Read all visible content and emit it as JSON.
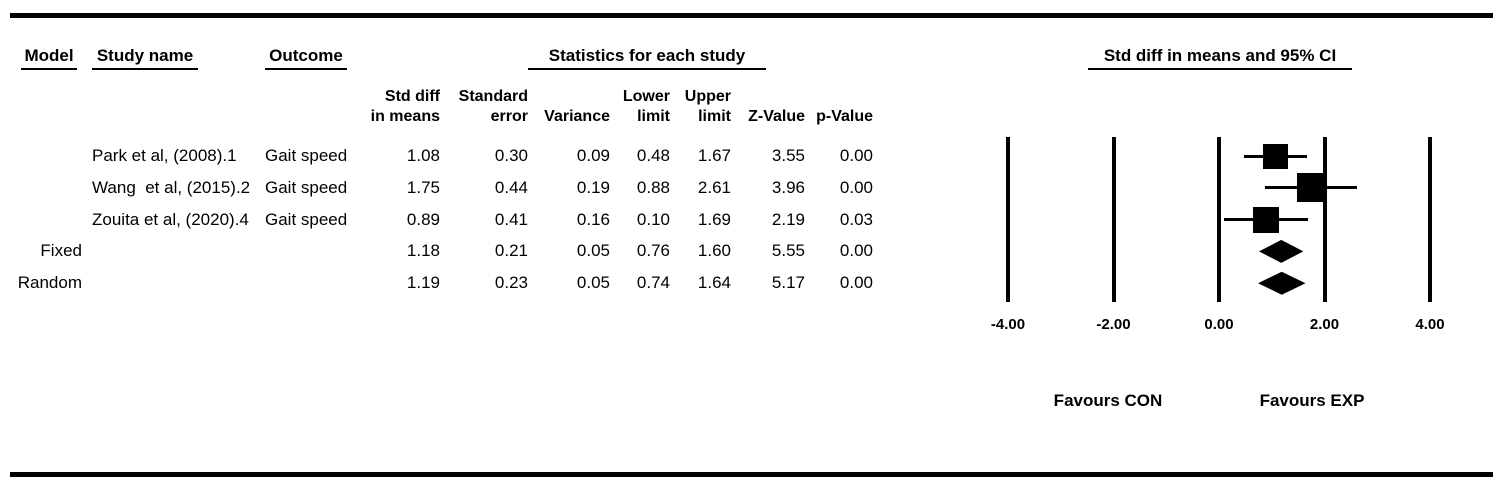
{
  "headers": {
    "model": "Model",
    "study_name": "Study name",
    "outcome": "Outcome",
    "stats_group": "Statistics for each study",
    "plot_group": "Std diff in means and 95% CI"
  },
  "columns": {
    "std_diff": "Std diff\nin means",
    "std_err": "Standard\nerror",
    "variance": "Variance",
    "lower": "Lower\nlimit",
    "upper": "Upper\nlimit",
    "z": "Z-Value",
    "p": "p-Value"
  },
  "table": {
    "rows": [
      {
        "model": "",
        "study": "Park et al, (2008).1",
        "outcome": "Gait speed",
        "std_diff": "1.08",
        "std_err": "0.30",
        "variance": "0.09",
        "lower": "0.48",
        "upper": "1.67",
        "z": "3.55",
        "p": "0.00"
      },
      {
        "model": "",
        "study": "Wang  et al, (2015).2",
        "outcome": "Gait speed",
        "std_diff": "1.75",
        "std_err": "0.44",
        "variance": "0.19",
        "lower": "0.88",
        "upper": "2.61",
        "z": "3.96",
        "p": "0.00"
      },
      {
        "model": "",
        "study": "Zouita et al, (2020).4",
        "outcome": "Gait speed",
        "std_diff": "0.89",
        "std_err": "0.41",
        "variance": "0.16",
        "lower": "0.10",
        "upper": "1.69",
        "z": "2.19",
        "p": "0.03"
      },
      {
        "model": "Fixed",
        "study": "",
        "outcome": "",
        "std_diff": "1.18",
        "std_err": "0.21",
        "variance": "0.05",
        "lower": "0.76",
        "upper": "1.60",
        "z": "5.55",
        "p": "0.00"
      },
      {
        "model": "Random",
        "study": "",
        "outcome": "",
        "std_diff": "1.19",
        "std_err": "0.23",
        "variance": "0.05",
        "lower": "0.74",
        "upper": "1.64",
        "z": "5.17",
        "p": "0.00"
      }
    ]
  },
  "chart_data": {
    "type": "forest",
    "title": "Std diff in means and 95% CI",
    "axis": {
      "ticks": [
        -4,
        -2,
        0,
        2,
        4
      ],
      "tick_labels": [
        "-4.00",
        "-2.00",
        "0.00",
        "2.00",
        "4.00"
      ],
      "xlim": [
        -4,
        4
      ]
    },
    "footer_left": "Favours CON",
    "footer_right": "Favours EXP",
    "rows": [
      {
        "label": "Park et al, (2008).1",
        "marker": "square",
        "mean": 1.08,
        "lower": 0.48,
        "upper": 1.67,
        "marker_size": 25
      },
      {
        "label": "Wang  et al, (2015).2",
        "marker": "square",
        "mean": 1.75,
        "lower": 0.88,
        "upper": 2.61,
        "marker_size": 29
      },
      {
        "label": "Zouita et al, (2020).4",
        "marker": "square",
        "mean": 0.89,
        "lower": 0.1,
        "upper": 1.69,
        "marker_size": 26
      },
      {
        "label": "Fixed",
        "marker": "diamond",
        "mean": 1.18,
        "lower": 0.76,
        "upper": 1.6,
        "marker_size": 23
      },
      {
        "label": "Random",
        "marker": "diamond",
        "mean": 1.19,
        "lower": 0.74,
        "upper": 1.64,
        "marker_size": 23
      }
    ]
  },
  "colors": {
    "ink": "#000000",
    "background": "#ffffff"
  }
}
